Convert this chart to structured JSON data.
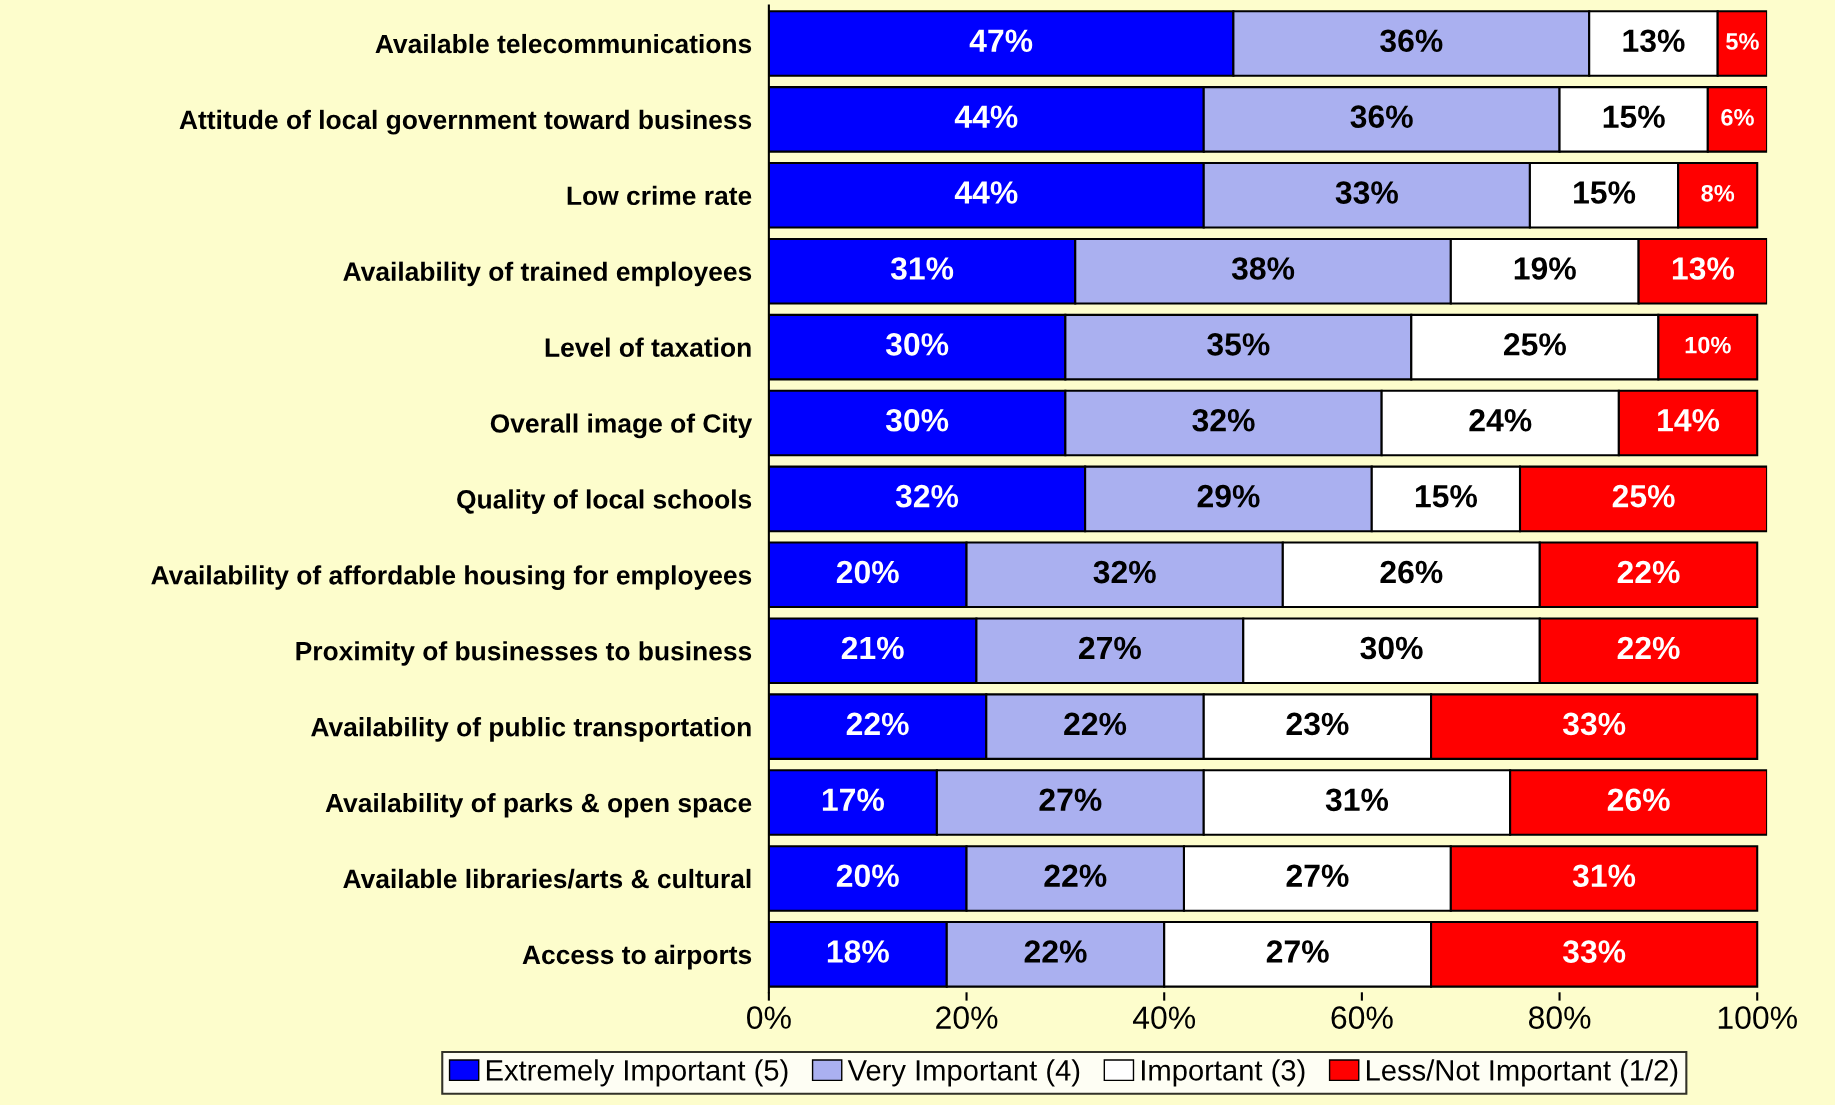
{
  "chart_data": {
    "type": "bar",
    "orientation": "horizontal",
    "stacked": true,
    "legend": "bottom",
    "grid": false,
    "categories": [
      "Available telecommunications",
      "Attitude of local government toward business",
      "Low crime rate",
      "Availability of trained employees",
      "Level of taxation",
      "Overall image of City",
      "Quality of local schools",
      "Availability of affordable housing for employees",
      "Proximity of businesses to business",
      "Availability of public transportation",
      "Availability of parks & open space",
      "Available libraries/arts & cultural",
      "Access to airports"
    ],
    "series": [
      {
        "name": "Extremely Important (5)",
        "color": "#0000ff",
        "values": [
          47,
          44,
          44,
          31,
          30,
          30,
          32,
          20,
          21,
          22,
          17,
          20,
          18
        ],
        "value_labels": [
          "47%",
          "44%",
          "44%",
          "31%",
          "30%",
          "30%",
          "32%",
          "20%",
          "21%",
          "22%",
          "17%",
          "20%",
          "18%"
        ]
      },
      {
        "name": "Very Important (4)",
        "color": "#aab0f0",
        "values": [
          36,
          36,
          33,
          38,
          35,
          32,
          29,
          32,
          27,
          22,
          27,
          22,
          22
        ],
        "value_labels": [
          "36%",
          "36%",
          "33%",
          "38%",
          "35%",
          "32%",
          "29%",
          "32%",
          "27%",
          "22%",
          "27%",
          "22%",
          "22%"
        ]
      },
      {
        "name": "Important (3)",
        "color": "#ffffff",
        "values": [
          13,
          15,
          15,
          19,
          25,
          24,
          15,
          26,
          30,
          23,
          31,
          27,
          27
        ],
        "value_labels": [
          "13%",
          "15%",
          "15%",
          "19%",
          "25%",
          "24%",
          "15%",
          "26%",
          "30%",
          "23%",
          "31%",
          "27%",
          "27%"
        ]
      },
      {
        "name": "Less/Not Important (1/2)",
        "color": "#ff0000",
        "values": [
          5,
          6,
          8,
          13,
          10,
          14,
          25,
          22,
          22,
          33,
          26,
          31,
          33
        ],
        "value_labels": [
          "5%",
          "6%",
          "8%",
          "13%",
          "10%",
          "14%",
          "25%",
          "22%",
          "22%",
          "33%",
          "26%",
          "31%",
          "33%"
        ]
      }
    ],
    "xlim": [
      0,
      101
    ],
    "xticks": [
      {
        "value": 0,
        "label": "0%"
      },
      {
        "value": 20,
        "label": "20%"
      },
      {
        "value": 40,
        "label": "40%"
      },
      {
        "value": 60,
        "label": "60%"
      },
      {
        "value": 80,
        "label": "80%"
      },
      {
        "value": 100,
        "label": "100%"
      }
    ]
  }
}
